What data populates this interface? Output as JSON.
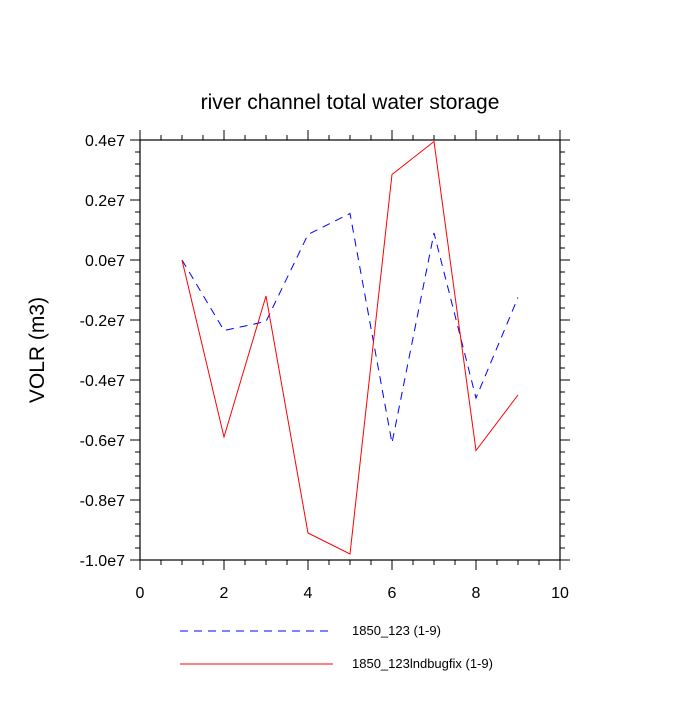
{
  "chart_data": {
    "type": "line",
    "title": "river channel total water storage",
    "xlabel": "",
    "ylabel": "VOLR  (m3)",
    "xlim": [
      0,
      10
    ],
    "ylim": [
      -10000000.0,
      4000000.0
    ],
    "x_ticks": [
      0,
      2,
      4,
      6,
      8,
      10
    ],
    "x_tick_labels": [
      "0",
      "2",
      "4",
      "6",
      "8",
      "10"
    ],
    "y_ticks": [
      -10000000.0,
      -8000000.0,
      -6000000.0,
      -4000000.0,
      -2000000.0,
      0.0,
      2000000.0,
      4000000.0
    ],
    "y_tick_labels": [
      "-1.0e7",
      "-0.8e7",
      "-0.6e7",
      "-0.4e7",
      "-0.2e7",
      "0.0e7",
      "0.2e7",
      "0.4e7"
    ],
    "grid": false,
    "legend_position": "bottom",
    "x": [
      1,
      2,
      3,
      4,
      5,
      6,
      7,
      8,
      9
    ],
    "series": [
      {
        "name": "1850_123 (1-9)",
        "color": "#0000ff",
        "dash": "dashed",
        "values": [
          0.0,
          -2350000.0,
          -2050000.0,
          850000.0,
          1550000.0,
          -6100000.0,
          900000.0,
          -4600000.0,
          -1250000.0
        ]
      },
      {
        "name": "1850_123lndbugfix (1-9)",
        "color": "#ff0000",
        "dash": "solid",
        "values": [
          0.0,
          -5900000.0,
          -1200000.0,
          -9100000.0,
          -9800000.0,
          2850000.0,
          3950000.0,
          -6350000.0,
          -4500000.0
        ]
      }
    ]
  }
}
